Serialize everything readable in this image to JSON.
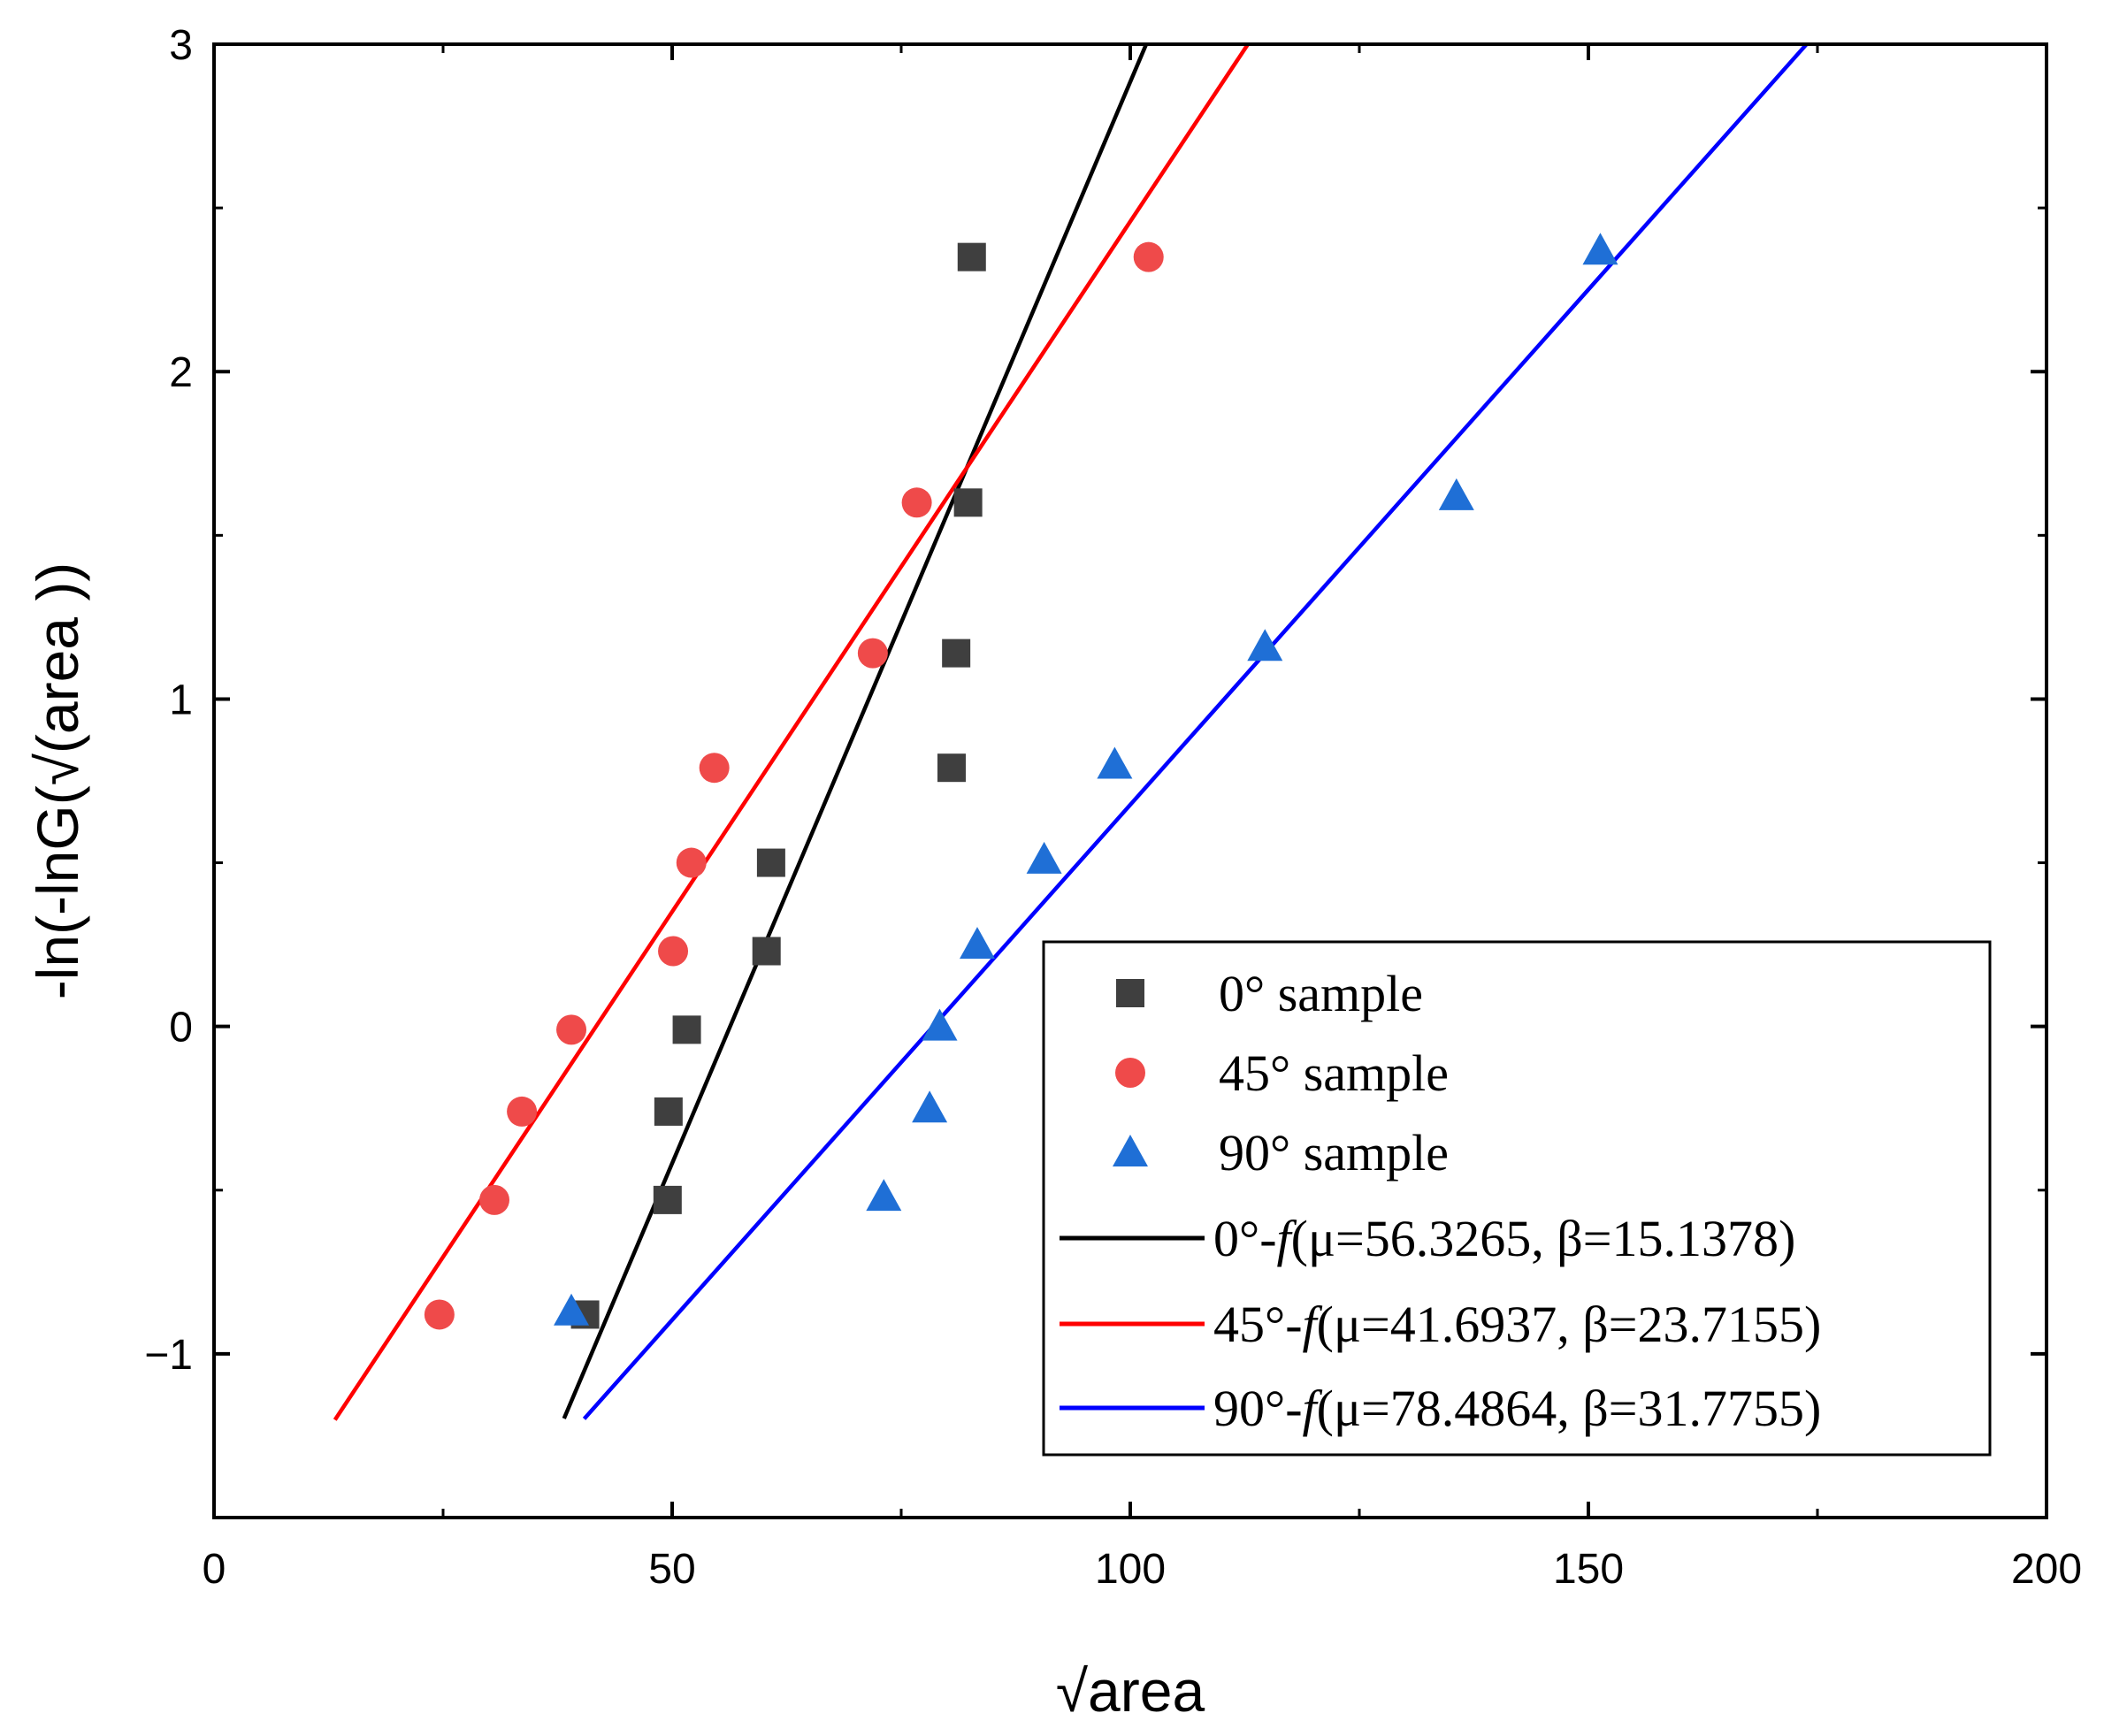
{
  "chart_data": {
    "type": "scatter",
    "xlabel": "√area",
    "ylabel": "-ln(-lnG(√(area ))",
    "xlim": [
      0,
      200
    ],
    "ylim": [
      -1.5,
      3
    ],
    "xticks": [
      0,
      50,
      100,
      150,
      200
    ],
    "xtick_labels": [
      "0",
      "50",
      "100",
      "150",
      "200"
    ],
    "yticks": [
      -1,
      0,
      1,
      2,
      3
    ],
    "ytick_labels": [
      "−1",
      "0",
      "1",
      "2",
      "3"
    ],
    "grid": false,
    "legend_position": "bottom-right",
    "series": [
      {
        "name": "0° sample",
        "marker": "square",
        "color": "#3f3f3f",
        "points": [
          [
            40.5,
            -0.88
          ],
          [
            49.5,
            -0.53
          ],
          [
            49.6,
            -0.26
          ],
          [
            51.6,
            -0.01
          ],
          [
            60.3,
            0.23
          ],
          [
            60.8,
            0.5
          ],
          [
            80.5,
            0.79
          ],
          [
            81.0,
            1.14
          ],
          [
            82.3,
            1.6
          ],
          [
            82.7,
            2.35
          ]
        ]
      },
      {
        "name": "45°  sample",
        "marker": "circle",
        "color": "#ef4a4a",
        "points": [
          [
            24.6,
            -0.88
          ],
          [
            30.6,
            -0.53
          ],
          [
            33.6,
            -0.26
          ],
          [
            39.0,
            -0.01
          ],
          [
            50.1,
            0.23
          ],
          [
            52.1,
            0.5
          ],
          [
            54.6,
            0.79
          ],
          [
            71.9,
            1.14
          ],
          [
            76.7,
            1.6
          ],
          [
            102.0,
            2.35
          ]
        ]
      },
      {
        "name": "90°  sample",
        "marker": "triangle",
        "color": "#1f6fd6",
        "points": [
          [
            39.0,
            -0.87
          ],
          [
            73.1,
            -0.52
          ],
          [
            78.1,
            -0.25
          ],
          [
            79.2,
            0.0
          ],
          [
            83.3,
            0.25
          ],
          [
            90.6,
            0.51
          ],
          [
            98.3,
            0.8
          ],
          [
            114.7,
            1.16
          ],
          [
            135.6,
            1.62
          ],
          [
            151.3,
            2.37
          ]
        ]
      }
    ],
    "fits": [
      {
        "name": "0°-f(μ=56.3265, β=15.1378)",
        "prefix": "0°-",
        "func": "f",
        "params": "(μ=56.3265, β=15.1378)",
        "mu": 56.3265,
        "beta": 15.1378,
        "x_range": [
          38.2,
          101.7
        ],
        "color": "#000000"
      },
      {
        "name": "45°-f(μ=41.6937, β=23.7155)",
        "prefix": "45°-",
        "func": "f",
        "params": "(μ=41.6937, β=23.7155)",
        "mu": 41.6937,
        "beta": 23.7155,
        "x_range": [
          13.2,
          112.8
        ],
        "color": "#ff0000"
      },
      {
        "name": "90°-f(μ=78.4864, β=31.7755)",
        "prefix": "90°-",
        "func": "f",
        "params": "(μ=78.4864, β=31.7755)",
        "mu": 78.4864,
        "beta": 31.7755,
        "x_range": [
          40.4,
          173.8
        ],
        "color": "#0000ff"
      }
    ]
  }
}
